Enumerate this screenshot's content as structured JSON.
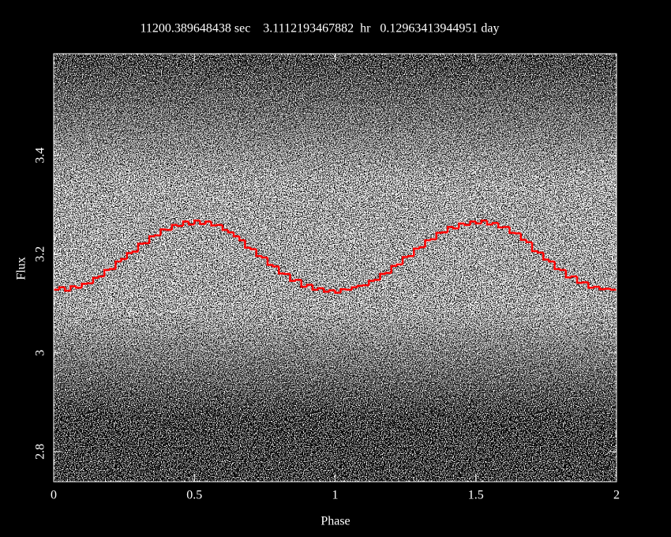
{
  "chart_data": {
    "type": "step",
    "title": "11200.389648438 sec    3.1112193467882  hr   0.12963413944951 day",
    "x_label": "Phase",
    "y_label": "Flux",
    "xlim": [
      0,
      2
    ],
    "xticks": [
      0,
      0.5,
      1,
      1.5,
      2
    ],
    "ylim": [
      2.739,
      3.606
    ],
    "yticks": [
      2.8,
      3,
      3.2,
      3.4
    ],
    "series": [
      {
        "color": "#ff0000",
        "x": [
          0,
          0.02,
          0.04,
          0.06,
          0.08,
          0.1,
          0.12,
          0.14,
          0.16,
          0.18,
          0.2,
          0.22,
          0.24,
          0.26,
          0.28,
          0.3,
          0.32,
          0.34,
          0.36,
          0.38,
          0.4,
          0.42,
          0.44,
          0.46,
          0.48,
          0.5,
          0.52,
          0.54,
          0.56,
          0.58,
          0.6,
          0.62,
          0.64,
          0.66,
          0.68,
          0.7,
          0.72,
          0.74,
          0.76,
          0.78,
          0.8,
          0.82,
          0.84,
          0.86,
          0.88,
          0.9,
          0.92,
          0.94,
          0.96,
          0.98,
          1,
          1.02,
          1.04,
          1.06,
          1.08,
          1.1,
          1.12,
          1.14,
          1.16,
          1.18,
          1.2,
          1.22,
          1.24,
          1.26,
          1.28,
          1.3,
          1.32,
          1.34,
          1.36,
          1.38,
          1.4,
          1.42,
          1.44,
          1.46,
          1.48,
          1.5,
          1.52,
          1.54,
          1.56,
          1.58,
          1.6,
          1.62,
          1.64,
          1.66,
          1.68,
          1.7,
          1.72,
          1.74,
          1.76,
          1.78,
          1.8,
          1.82,
          1.84,
          1.86,
          1.88,
          1.9,
          1.92,
          1.94,
          1.96,
          1.98
        ],
        "values": [
          3.128,
          3.133,
          3.126,
          3.135,
          3.132,
          3.14,
          3.141,
          3.152,
          3.155,
          3.168,
          3.17,
          3.185,
          3.19,
          3.202,
          3.205,
          3.221,
          3.222,
          3.236,
          3.238,
          3.25,
          3.249,
          3.259,
          3.257,
          3.266,
          3.26,
          3.268,
          3.261,
          3.266,
          3.258,
          3.259,
          3.249,
          3.244,
          3.236,
          3.228,
          3.213,
          3.21,
          3.196,
          3.193,
          3.178,
          3.175,
          3.161,
          3.16,
          3.146,
          3.148,
          3.134,
          3.138,
          3.128,
          3.131,
          3.124,
          3.127,
          3.122,
          3.129,
          3.128,
          3.133,
          3.136,
          3.137,
          3.146,
          3.148,
          3.16,
          3.162,
          3.176,
          3.179,
          3.194,
          3.196,
          3.211,
          3.214,
          3.228,
          3.23,
          3.243,
          3.244,
          3.255,
          3.252,
          3.262,
          3.259,
          3.266,
          3.262,
          3.268,
          3.26,
          3.263,
          3.254,
          3.255,
          3.243,
          3.242,
          3.229,
          3.224,
          3.206,
          3.203,
          3.189,
          3.185,
          3.17,
          3.168,
          3.153,
          3.155,
          3.142,
          3.143,
          3.132,
          3.134,
          3.129,
          3.13,
          3.128
        ]
      }
    ]
  }
}
